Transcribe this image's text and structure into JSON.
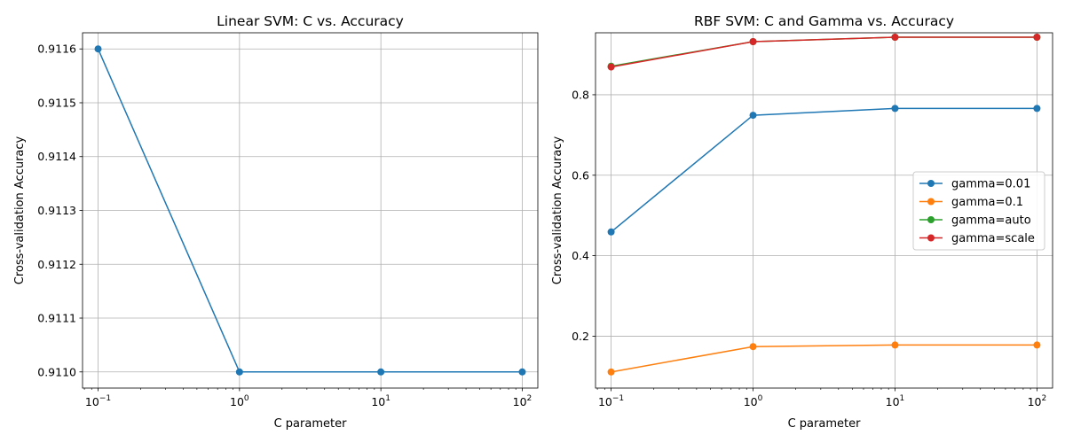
{
  "chart_data": [
    {
      "type": "line",
      "title": "Linear SVM: C vs. Accuracy",
      "xlabel": "C parameter",
      "ylabel": "Cross-validation Accuracy",
      "xscale": "log",
      "x": [
        0.1,
        1,
        10,
        100
      ],
      "xticks": [
        {
          "value": 0.1,
          "base": "10",
          "exp": "−1"
        },
        {
          "value": 1,
          "base": "10",
          "exp": "0"
        },
        {
          "value": 10,
          "base": "10",
          "exp": "1"
        },
        {
          "value": 100,
          "base": "10",
          "exp": "2"
        }
      ],
      "yticks": [
        "0.9110",
        "0.9111",
        "0.9112",
        "0.9113",
        "0.9114",
        "0.9115",
        "0.9116"
      ],
      "ylim": [
        0.91097,
        0.91163
      ],
      "grid": true,
      "series": [
        {
          "values": [
            0.9116,
            0.911,
            0.911,
            0.911
          ],
          "color": "#1f77b4"
        }
      ]
    },
    {
      "type": "line",
      "title": "RBF SVM: C and Gamma vs. Accuracy",
      "xlabel": "C parameter",
      "ylabel": "Cross-validation Accuracy",
      "xscale": "log",
      "x": [
        0.1,
        1,
        10,
        100
      ],
      "xticks": [
        {
          "value": 0.1,
          "base": "10",
          "exp": "−1"
        },
        {
          "value": 1,
          "base": "10",
          "exp": "0"
        },
        {
          "value": 10,
          "base": "10",
          "exp": "1"
        },
        {
          "value": 100,
          "base": "10",
          "exp": "2"
        }
      ],
      "yticks": [
        "0.2",
        "0.4",
        "0.6",
        "0.8"
      ],
      "ylim": [
        0.071,
        0.954
      ],
      "grid": true,
      "legend": "center-right",
      "series": [
        {
          "name": "gamma=0.01",
          "values": [
            0.459,
            0.749,
            0.766,
            0.766
          ],
          "color": "#1f77b4"
        },
        {
          "name": "gamma=0.1",
          "values": [
            0.111,
            0.174,
            0.178,
            0.178
          ],
          "color": "#ff7f0e"
        },
        {
          "name": "gamma=auto",
          "values": [
            0.871,
            0.932,
            0.943,
            0.943
          ],
          "color": "#2ca02c"
        },
        {
          "name": "gamma=scale",
          "values": [
            0.869,
            0.932,
            0.943,
            0.943
          ],
          "color": "#d62728"
        }
      ]
    }
  ]
}
